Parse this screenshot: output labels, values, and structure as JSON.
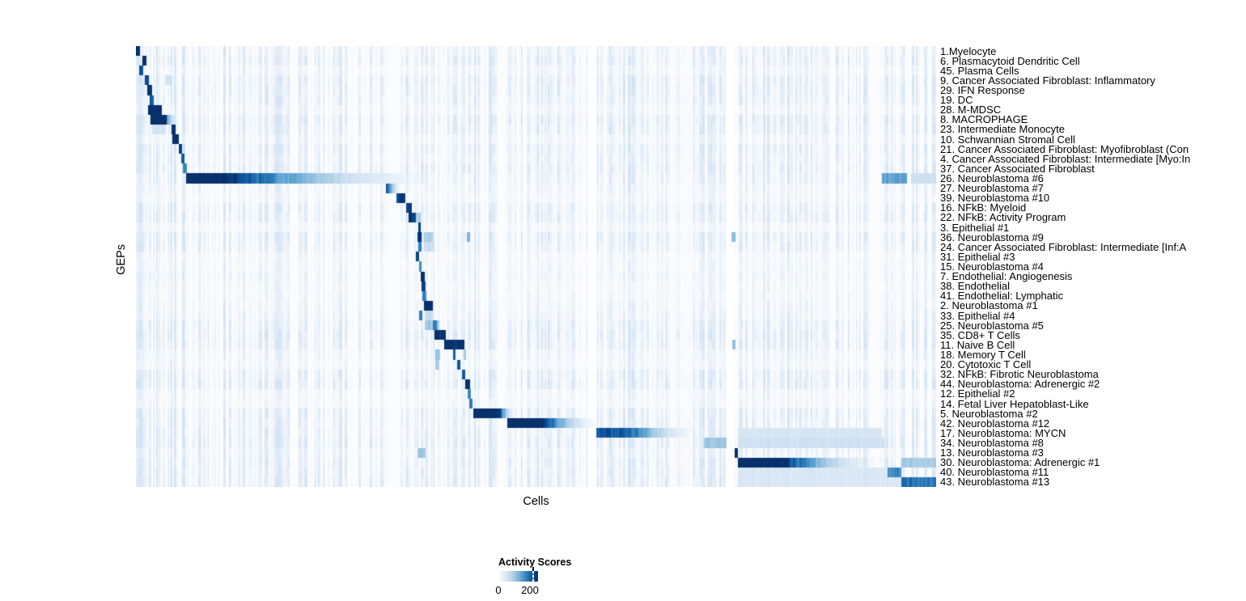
{
  "figure": {
    "xlabel": "Cells",
    "ylabel": "GEPs",
    "legend": {
      "title": "Activity Scores",
      "min_label": "0",
      "tick_label": "200"
    }
  },
  "chart_data": {
    "type": "heatmap",
    "title": "",
    "xlabel": "Cells",
    "ylabel": "GEPs",
    "legend_title": "Activity Scores",
    "legend_position": "bottom",
    "grid": false,
    "scale": {
      "min": 0,
      "tick": 200,
      "max": 228
    },
    "colormap_stops": [
      [
        0,
        "#ffffff"
      ],
      [
        0.1,
        "#e7f0f9"
      ],
      [
        0.25,
        "#cfe1f2"
      ],
      [
        0.4,
        "#a6cbe3"
      ],
      [
        0.55,
        "#6aaad6"
      ],
      [
        0.7,
        "#3182bd"
      ],
      [
        0.85,
        "#0b519c"
      ],
      [
        1,
        "#08306b"
      ]
    ],
    "gaps": [
      [
        0.565,
        0.575
      ],
      [
        0.737,
        0.748
      ]
    ],
    "col_groups": [
      0,
      0.063,
      0.312,
      0.42,
      0.464,
      0.565,
      0.575,
      0.737,
      0.748,
      0.94,
      1.0
    ],
    "row_noise": [
      0.7,
      0.9,
      0.5,
      0.9,
      0.9,
      0.8,
      0.5,
      1.0,
      0.9,
      0.5,
      0.9,
      0.7,
      0.9,
      0.7,
      0.5,
      0.4,
      0.8,
      0.9,
      0.4,
      0.9,
      0.8,
      0.4,
      0.4,
      0.5,
      0.4,
      0.4,
      0.5,
      0.6,
      0.9,
      1.0,
      0.9,
      0.5,
      0.4,
      0.9,
      1.0,
      0.4,
      0.4,
      0.9,
      0.8,
      0.9,
      1.0,
      0.7,
      0.9,
      0.9,
      1.0
    ],
    "rows": [
      {
        "label": "1.Myelocyte",
        "segments": [
          [
            0.0,
            0.005,
            235,
            0
          ]
        ]
      },
      {
        "label": "6. Plasmacytoid Dendritic Cell",
        "segments": [
          [
            0.008,
            0.013,
            230,
            0
          ]
        ]
      },
      {
        "label": "45. Plasma Cells",
        "segments": [
          [
            0.004,
            0.009,
            190,
            0
          ]
        ]
      },
      {
        "label": "9. Cancer Associated Fibroblast: Inflammatory",
        "segments": [
          [
            0.011,
            0.016,
            195,
            0
          ],
          [
            0.036,
            0.045,
            55,
            0
          ]
        ]
      },
      {
        "label": "29. IFN Response",
        "segments": [
          [
            0.014,
            0.02,
            225,
            0
          ]
        ]
      },
      {
        "label": "19. DC",
        "segments": [
          [
            0.017,
            0.022,
            195,
            0
          ]
        ]
      },
      {
        "label": "28. M-MDSC",
        "segments": [
          [
            0.015,
            0.032,
            245,
            0
          ]
        ]
      },
      {
        "label": "8. MACROPHAGE",
        "segments": [
          [
            0.018,
            0.038,
            250,
            0
          ],
          [
            0.038,
            0.054,
            150,
            1
          ]
        ]
      },
      {
        "label": "23. Intermediate Monocyte",
        "segments": [
          [
            0.044,
            0.049,
            210,
            0
          ],
          [
            0.02,
            0.037,
            50,
            0
          ]
        ]
      },
      {
        "label": "10. Schwannian Stromal Cell",
        "segments": [
          [
            0.045,
            0.053,
            240,
            0
          ]
        ]
      },
      {
        "label": "21. Cancer Associated Fibroblast: Myofibroblast (Con",
        "segments": [
          [
            0.053,
            0.057,
            215,
            0
          ]
        ]
      },
      {
        "label": "4. Cancer Associated Fibroblast: Intermediate [Myo:In",
        "segments": [
          [
            0.056,
            0.06,
            195,
            0
          ]
        ]
      },
      {
        "label": "37. Cancer Associated Fibroblast",
        "segments": [
          [
            0.058,
            0.063,
            160,
            0
          ]
        ]
      },
      {
        "label": "26. Neuroblastoma #6",
        "segments": [
          [
            0.062,
            0.093,
            250,
            0
          ],
          [
            0.093,
            0.396,
            250,
            1
          ],
          [
            0.932,
            0.963,
            130,
            0
          ],
          [
            0.968,
            1.0,
            60,
            0
          ]
        ]
      },
      {
        "label": "27. Neuroblastoma #7",
        "segments": [
          [
            0.312,
            0.332,
            235,
            1
          ]
        ]
      },
      {
        "label": "39. Neuroblastoma #10",
        "segments": [
          [
            0.325,
            0.336,
            215,
            0
          ]
        ]
      },
      {
        "label": "16. NFkB: Myeloid",
        "segments": [
          [
            0.337,
            0.344,
            205,
            0
          ]
        ]
      },
      {
        "label": "22. NFkB: Activity Program",
        "segments": [
          [
            0.34,
            0.349,
            220,
            0
          ],
          [
            0.349,
            0.355,
            80,
            0
          ]
        ]
      },
      {
        "label": "3. Epithelial #1",
        "segments": [
          [
            0.352,
            0.355,
            200,
            0
          ]
        ]
      },
      {
        "label": "36. Neuroblastoma #9",
        "segments": [
          [
            0.351,
            0.356,
            215,
            0
          ],
          [
            0.359,
            0.371,
            85,
            0
          ],
          [
            0.413,
            0.417,
            110,
            0
          ],
          [
            0.744,
            0.749,
            100,
            0
          ]
        ]
      },
      {
        "label": "24. Cancer Associated Fibroblast: Intermediate [Inf:A",
        "segments": [
          [
            0.352,
            0.356,
            150,
            0
          ],
          [
            0.359,
            0.373,
            60,
            0
          ]
        ]
      },
      {
        "label": "31. Epithelial #3",
        "segments": [
          [
            0.349,
            0.353,
            195,
            0
          ]
        ]
      },
      {
        "label": "15. Neuroblastoma #4",
        "segments": [
          [
            0.353,
            0.356,
            140,
            0
          ]
        ]
      },
      {
        "label": "7. Endothelial: Angiogenesis",
        "segments": [
          [
            0.355,
            0.36,
            225,
            0
          ]
        ]
      },
      {
        "label": "38. Endothelial",
        "segments": [
          [
            0.356,
            0.361,
            200,
            0
          ]
        ]
      },
      {
        "label": "41. Endothelial: Lymphatic",
        "segments": [
          [
            0.357,
            0.362,
            155,
            0
          ]
        ]
      },
      {
        "label": "2. Neuroblastoma #1",
        "segments": [
          [
            0.359,
            0.371,
            245,
            0
          ]
        ]
      },
      {
        "label": "33. Epithelial #4",
        "segments": [
          [
            0.353,
            0.357,
            150,
            0
          ],
          [
            0.36,
            0.371,
            65,
            0
          ]
        ]
      },
      {
        "label": "25. Neuroblastoma #5",
        "segments": [
          [
            0.36,
            0.379,
            95,
            0
          ],
          [
            0.371,
            0.376,
            160,
            0
          ]
        ]
      },
      {
        "label": "35. CD8+ T Cells",
        "segments": [
          [
            0.373,
            0.387,
            235,
            0
          ]
        ]
      },
      {
        "label": "11. Naive B Cell",
        "segments": [
          [
            0.385,
            0.41,
            240,
            0
          ],
          [
            0.745,
            0.749,
            95,
            0
          ]
        ]
      },
      {
        "label": "18. Memory T Cell",
        "segments": [
          [
            0.396,
            0.399,
            200,
            0
          ],
          [
            0.409,
            0.412,
            90,
            0
          ],
          [
            0.374,
            0.38,
            100,
            0
          ]
        ]
      },
      {
        "label": "20. Cytotoxic T Cell",
        "segments": [
          [
            0.401,
            0.405,
            190,
            0
          ],
          [
            0.374,
            0.379,
            85,
            0
          ]
        ]
      },
      {
        "label": "32. NFkB: Fibrotic Neuroblastoma",
        "segments": [
          [
            0.407,
            0.411,
            195,
            0
          ]
        ]
      },
      {
        "label": "44. Neuroblastoma: Adrenergic #2",
        "segments": [
          [
            0.411,
            0.417,
            225,
            0
          ]
        ]
      },
      {
        "label": "12. Epithelial #2",
        "segments": [
          [
            0.414,
            0.418,
            150,
            0
          ]
        ]
      },
      {
        "label": "14. Fetal Liver Hepatoblast-Like",
        "segments": [
          [
            0.416,
            0.42,
            160,
            0
          ]
        ]
      },
      {
        "label": "5. Neuroblastoma #2",
        "segments": [
          [
            0.421,
            0.452,
            240,
            0
          ],
          [
            0.452,
            0.475,
            240,
            1
          ]
        ]
      },
      {
        "label": "42. Neuroblastoma #12",
        "segments": [
          [
            0.464,
            0.503,
            250,
            0
          ],
          [
            0.503,
            0.581,
            250,
            1
          ]
        ]
      },
      {
        "label": "17. Neuroblastoma: MYCN",
        "segments": [
          [
            0.575,
            0.614,
            190,
            0
          ],
          [
            0.614,
            0.709,
            190,
            1
          ],
          [
            0.752,
            0.932,
            45,
            0
          ]
        ]
      },
      {
        "label": "34. Neuroblastoma #8",
        "segments": [
          [
            0.709,
            0.738,
            95,
            0
          ],
          [
            0.752,
            0.935,
            55,
            0
          ]
        ]
      },
      {
        "label": "13. Neuroblastoma #3",
        "segments": [
          [
            0.748,
            0.752,
            230,
            0
          ],
          [
            0.351,
            0.361,
            90,
            0
          ]
        ]
      },
      {
        "label": "30. Neuroblastoma: Adrenergic #1",
        "segments": [
          [
            0.752,
            0.801,
            245,
            0
          ],
          [
            0.801,
            0.94,
            245,
            1
          ],
          [
            0.956,
            1.0,
            90,
            0
          ]
        ]
      },
      {
        "label": "40. Neuroblastoma #11",
        "segments": [
          [
            0.939,
            0.956,
            150,
            0
          ],
          [
            0.752,
            0.938,
            40,
            0
          ]
        ]
      },
      {
        "label": "43. Neuroblastoma #13",
        "segments": [
          [
            0.956,
            1.0,
            170,
            0
          ],
          [
            0.752,
            0.956,
            40,
            0
          ]
        ]
      }
    ]
  }
}
